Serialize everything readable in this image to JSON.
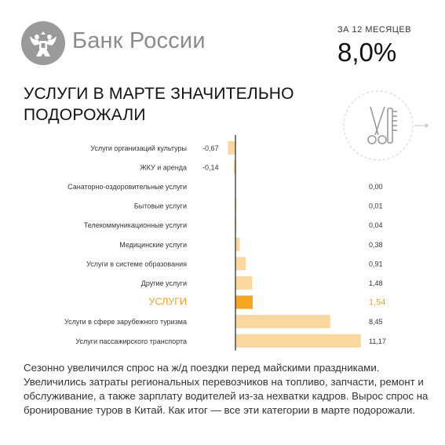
{
  "header": {
    "brand": "Банк России",
    "period_label": "ЗА 12 МЕСЯЦЕВ",
    "period_value": "8,0%"
  },
  "headline_lines": [
    "УСЛУГИ В МАРТЕ ЗНАЧИТЕЛЬНО",
    "ПОДОРОЖАЛИ"
  ],
  "icons": {
    "logo": "double-headed-eagle-icon",
    "decor": "scissors-comb-icon"
  },
  "colors": {
    "bar": "#fad7a0",
    "highlight_bar": "#f5a623",
    "highlight_text": "#f0a030"
  },
  "chart_data": {
    "type": "bar",
    "orientation": "horizontal",
    "categories": [
      "Услуги организаций культуры",
      "ЖКУ и аренда",
      "Санаторно-оздоровительные услуги",
      "Бытовые услуги",
      "Телекоммуникационные услуги",
      "Медицинские услуги",
      "Услуги в системе образования",
      "Другие услуги",
      "УСЛУГИ",
      "Услуги в сфере зарубежного туризма",
      "Услуги пассажирского транспорта"
    ],
    "values": [
      -0.67,
      -0.14,
      0.0,
      0.01,
      0.04,
      0.38,
      0.91,
      1.48,
      1.54,
      8.45,
      11.17
    ],
    "labels": [
      "-0,67",
      "-0,14",
      "0,00",
      "0,01",
      "0,04",
      "0,38",
      "0,91",
      "1,48",
      "1,54",
      "8,45",
      "11,17"
    ],
    "highlight_index": 8,
    "xlim": [
      -1,
      12
    ]
  },
  "description": "Сезонно увеличился спрос на ж/д поездки перед майскими праздниками. Увеличились затраты региональных перевозчиков на топливо, запчасти, ремонт и обслуживание, а также зарплату водителей из-за нехватки кадров. Вырос спрос на бронирование туров в Китай. Как итог — все эти категории в марте подорожали."
}
